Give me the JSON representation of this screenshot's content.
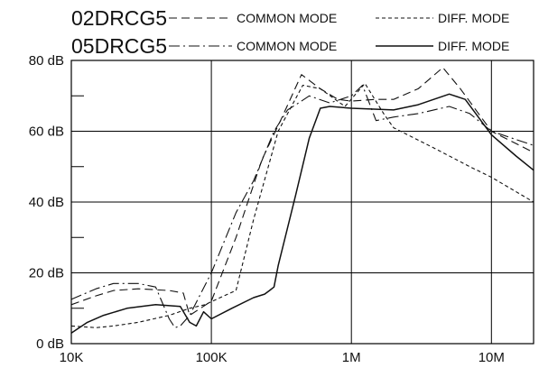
{
  "chart_data": {
    "type": "line",
    "x_scale": "log",
    "xlim": [
      10000,
      20000000
    ],
    "ylim": [
      0,
      80
    ],
    "grid": true,
    "legend_position": "top",
    "x_ticks": [
      {
        "value": 10000,
        "label": "10K"
      },
      {
        "value": 100000,
        "label": "100K"
      },
      {
        "value": 1000000,
        "label": "1M"
      },
      {
        "value": 10000000,
        "label": "10M"
      }
    ],
    "y_ticks": [
      {
        "value": 0,
        "label": "0 dB"
      },
      {
        "value": 20,
        "label": "20 dB"
      },
      {
        "value": 40,
        "label": "40 dB"
      },
      {
        "value": 60,
        "label": "60 dB"
      },
      {
        "value": 80,
        "label": "80 dB"
      }
    ],
    "legend": [
      {
        "title": "02DRCG5",
        "entries": [
          {
            "series": 0,
            "label": "COMMON MODE"
          },
          {
            "series": 1,
            "label": "DIFF. MODE"
          }
        ]
      },
      {
        "title": "05DRCG5",
        "entries": [
          {
            "series": 2,
            "label": "COMMON MODE"
          },
          {
            "series": 3,
            "label": "DIFF. MODE"
          }
        ]
      }
    ],
    "series": [
      {
        "name": "02DRCG5 COMMON MODE",
        "dash": "dash",
        "points": [
          [
            10000,
            11
          ],
          [
            15000,
            13.5
          ],
          [
            20000,
            15
          ],
          [
            30000,
            15.5
          ],
          [
            50000,
            15
          ],
          [
            63000,
            14.3
          ],
          [
            70000,
            8
          ],
          [
            100000,
            12
          ],
          [
            150000,
            30
          ],
          [
            230000,
            52
          ],
          [
            320000,
            64
          ],
          [
            440000,
            76
          ],
          [
            600000,
            72
          ],
          [
            800000,
            69
          ],
          [
            1000000,
            68.5
          ],
          [
            1500000,
            69
          ],
          [
            2000000,
            69
          ],
          [
            3000000,
            72
          ],
          [
            4500000,
            78
          ],
          [
            6000000,
            72
          ],
          [
            10000000,
            60
          ],
          [
            20000000,
            54
          ]
        ]
      },
      {
        "name": "02DRCG5 DIFF. MODE",
        "dash": "fine",
        "points": [
          [
            10000,
            5
          ],
          [
            15000,
            4.5
          ],
          [
            20000,
            5
          ],
          [
            30000,
            6
          ],
          [
            50000,
            8
          ],
          [
            70000,
            10
          ],
          [
            90000,
            11
          ],
          [
            120000,
            13.3
          ],
          [
            150000,
            15
          ],
          [
            200000,
            35
          ],
          [
            300000,
            60
          ],
          [
            450000,
            73
          ],
          [
            600000,
            72
          ],
          [
            900000,
            67
          ],
          [
            1250000,
            73.5
          ],
          [
            1700000,
            65
          ],
          [
            2000000,
            61
          ],
          [
            4000000,
            55
          ],
          [
            7000000,
            50
          ],
          [
            10000000,
            47
          ],
          [
            20000000,
            40
          ]
        ]
      },
      {
        "name": "05DRCG5 COMMON MODE",
        "dash": "dashdot",
        "points": [
          [
            10000,
            12.5
          ],
          [
            15000,
            15.5
          ],
          [
            20000,
            17
          ],
          [
            30000,
            17
          ],
          [
            40000,
            16
          ],
          [
            50000,
            7
          ],
          [
            55000,
            4.5
          ],
          [
            60000,
            5
          ],
          [
            70000,
            8
          ],
          [
            100000,
            20
          ],
          [
            150000,
            37
          ],
          [
            200000,
            46
          ],
          [
            280000,
            60
          ],
          [
            350000,
            66
          ],
          [
            420000,
            68
          ],
          [
            500000,
            70
          ],
          [
            700000,
            68
          ],
          [
            1000000,
            70
          ],
          [
            1200000,
            73
          ],
          [
            1500000,
            63
          ],
          [
            2000000,
            64
          ],
          [
            3000000,
            65
          ],
          [
            5000000,
            67
          ],
          [
            7000000,
            65
          ],
          [
            10000000,
            60
          ],
          [
            20000000,
            56
          ]
        ]
      },
      {
        "name": "05DRCG5 DIFF. MODE",
        "dash": "solid",
        "points": [
          [
            10000,
            3
          ],
          [
            13000,
            6
          ],
          [
            17000,
            8
          ],
          [
            25000,
            10
          ],
          [
            40000,
            11
          ],
          [
            60000,
            10.5
          ],
          [
            70000,
            6
          ],
          [
            78000,
            5
          ],
          [
            88000,
            9
          ],
          [
            100000,
            7
          ],
          [
            140000,
            10
          ],
          [
            200000,
            13
          ],
          [
            240000,
            14
          ],
          [
            260000,
            15
          ],
          [
            280000,
            16
          ],
          [
            300000,
            22
          ],
          [
            400000,
            42
          ],
          [
            500000,
            58
          ],
          [
            600000,
            66.5
          ],
          [
            700000,
            67
          ],
          [
            1000000,
            66.5
          ],
          [
            2000000,
            66
          ],
          [
            3000000,
            67.5
          ],
          [
            5000000,
            70.5
          ],
          [
            6500000,
            69
          ],
          [
            10000000,
            59
          ],
          [
            15000000,
            53
          ],
          [
            20000000,
            49
          ]
        ]
      }
    ]
  }
}
